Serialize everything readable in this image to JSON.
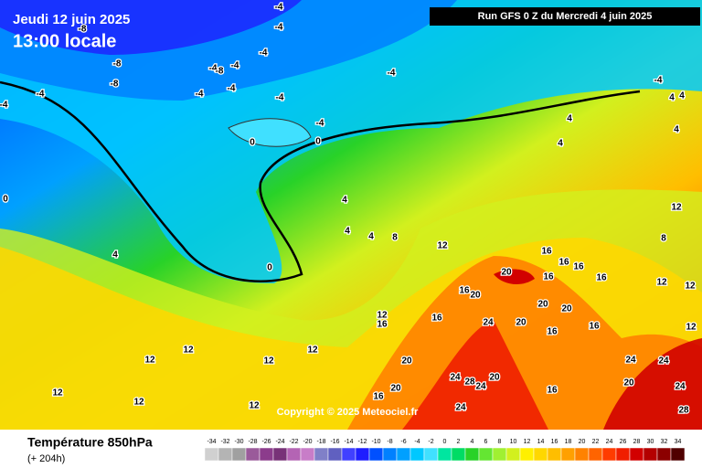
{
  "header": {
    "date": "Jeudi 12 juin 2025",
    "time": "13:00 locale",
    "run": "Run GFS 0 Z du Mercredi 4 juin 2025"
  },
  "copyright": "Copyright © 2025 Meteociel.fr",
  "footer": {
    "title": "Température 850hPa",
    "lead": "(+ 204h)"
  },
  "scale": {
    "values": [
      -34,
      -32,
      -30,
      -28,
      -26,
      -24,
      -22,
      -20,
      -18,
      -16,
      -14,
      -12,
      -10,
      -8,
      -6,
      -4,
      -2,
      0,
      2,
      4,
      6,
      8,
      10,
      12,
      14,
      16,
      18,
      20,
      22,
      24,
      26,
      28,
      30,
      32,
      34
    ],
    "colors": [
      "#d0d0d0",
      "#b4b4b4",
      "#a0a0a0",
      "#9a5a9a",
      "#8c3c8c",
      "#783278",
      "#b464b4",
      "#c87dc8",
      "#8080c8",
      "#6060c0",
      "#4040ff",
      "#1e1eff",
      "#0050ff",
      "#0080ff",
      "#00a0ff",
      "#00c8ff",
      "#40e0ff",
      "#00e6a0",
      "#00dc64",
      "#28d228",
      "#64e632",
      "#a0f032",
      "#d2f01e",
      "#fff000",
      "#ffd700",
      "#ffbe00",
      "#ffa000",
      "#ff8200",
      "#ff6400",
      "#ff3c00",
      "#f01e00",
      "#d20000",
      "#b40000",
      "#8c0000",
      "#500000"
    ]
  },
  "map_labels": [
    -4,
    -4,
    -8,
    -8,
    -8,
    -4,
    -8,
    -4,
    -4,
    -4,
    -4,
    -4,
    -4,
    -4,
    -4,
    4,
    -4,
    4,
    4,
    0,
    -4,
    0,
    4,
    4,
    0,
    4,
    4,
    4,
    8,
    4,
    0,
    12,
    8,
    12,
    16,
    16,
    16,
    20,
    16,
    16,
    16,
    20,
    12,
    12,
    12,
    16,
    16,
    24,
    20,
    16,
    16,
    12,
    12,
    12,
    12,
    12,
    20,
    24,
    28,
    24,
    20,
    20,
    16,
    20,
    24,
    24,
    24,
    28,
    12,
    12,
    16,
    24,
    12,
    20,
    20
  ]
}
